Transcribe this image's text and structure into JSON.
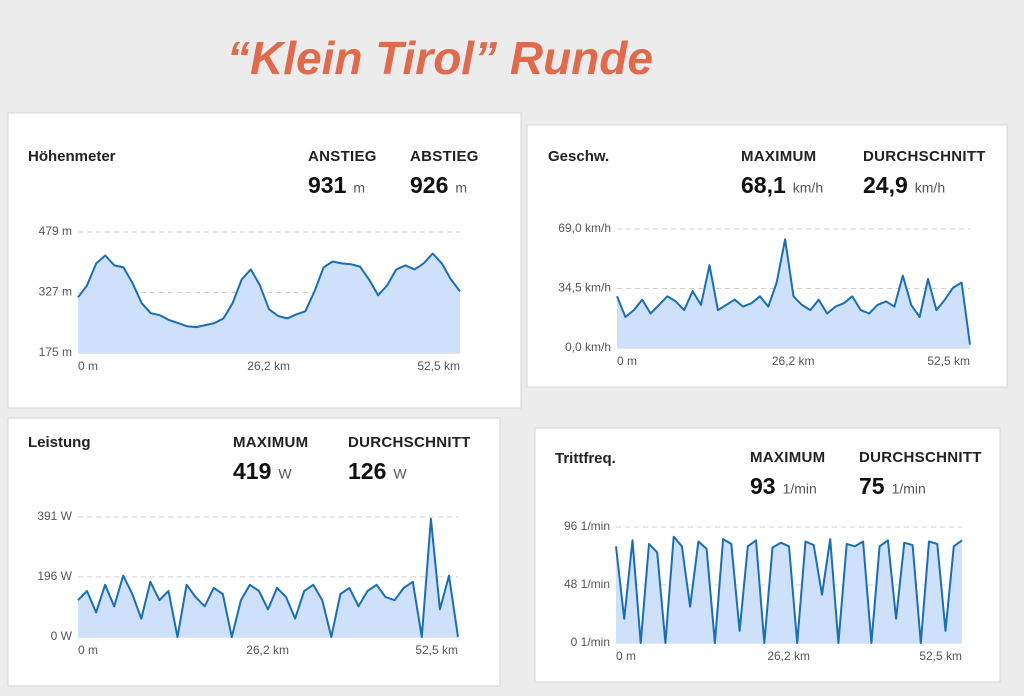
{
  "title": "“Klein Tirol” Runde",
  "chart_data": [
    {
      "type": "line",
      "title": "Höhenmeter",
      "stats": [
        {
          "name": "ANSTIEG",
          "value": 931,
          "unit": "m"
        },
        {
          "name": "ABSTIEG",
          "value": 926,
          "unit": "m"
        }
      ],
      "x": [
        0,
        1.25,
        2.5,
        3.75,
        5,
        6.25,
        7.5,
        8.75,
        10,
        11.25,
        12.5,
        13.75,
        15,
        16.25,
        17.5,
        18.75,
        20,
        21.25,
        22.5,
        23.75,
        25,
        26.25,
        27.5,
        28.75,
        30,
        31.25,
        32.5,
        33.75,
        35,
        36.25,
        37.5,
        38.75,
        40,
        41.25,
        42.5,
        43.75,
        45,
        46.25,
        47.5,
        48.75,
        50,
        51.25,
        52.5
      ],
      "series": [
        {
          "color": "#1a6fb0",
          "values": [
            315,
            345,
            400,
            420,
            395,
            390,
            350,
            300,
            275,
            270,
            258,
            250,
            242,
            240,
            245,
            250,
            262,
            300,
            360,
            385,
            345,
            285,
            268,
            262,
            272,
            280,
            330,
            390,
            405,
            400,
            398,
            392,
            360,
            320,
            345,
            385,
            395,
            385,
            400,
            425,
            400,
            360,
            330
          ]
        }
      ],
      "xlim": [
        0,
        52.5
      ],
      "xticks": [
        {
          "value": 0,
          "label": "0 m"
        },
        {
          "value": 26.2,
          "label": "26,2 km"
        },
        {
          "value": 52.5,
          "label": "52,5 km"
        }
      ],
      "ylim": [
        175,
        479
      ],
      "yticks": [
        {
          "value": 175,
          "label": "175 m"
        },
        {
          "value": 327,
          "label": "327 m"
        },
        {
          "value": 479,
          "label": "479 m"
        }
      ],
      "grid": true
    },
    {
      "type": "line",
      "title": "Geschw.",
      "stats": [
        {
          "name": "MAXIMUM",
          "value": 68.1,
          "value_label": "68,1",
          "unit": "km/h"
        },
        {
          "name": "DURCHSCHNITT",
          "value": 24.9,
          "value_label": "24,9",
          "unit": "km/h"
        }
      ],
      "x": [
        0,
        1.25,
        2.5,
        3.75,
        5,
        6.25,
        7.5,
        8.75,
        10,
        11.25,
        12.5,
        13.75,
        15,
        16.25,
        17.5,
        18.75,
        20,
        21.25,
        22.5,
        23.75,
        25,
        26.25,
        27.5,
        28.75,
        30,
        31.25,
        32.5,
        33.75,
        35,
        36.25,
        37.5,
        38.75,
        40,
        41.25,
        42.5,
        43.75,
        45,
        46.25,
        47.5,
        48.75,
        50,
        51.25,
        52.5
      ],
      "series": [
        {
          "color": "#1a6fb0",
          "values": [
            30,
            18,
            22,
            28,
            20,
            25,
            30,
            27,
            22,
            33,
            25,
            48,
            22,
            25,
            28,
            24,
            26,
            30,
            24,
            38,
            63,
            30,
            25,
            22,
            28,
            20,
            24,
            26,
            30,
            22,
            20,
            25,
            27,
            24,
            42,
            25,
            18,
            40,
            22,
            28,
            35,
            38,
            2
          ]
        }
      ],
      "xlim": [
        0,
        52.5
      ],
      "xticks": [
        {
          "value": 0,
          "label": "0 m"
        },
        {
          "value": 26.2,
          "label": "26,2 km"
        },
        {
          "value": 52.5,
          "label": "52,5 km"
        }
      ],
      "ylim": [
        0,
        69
      ],
      "yticks": [
        {
          "value": 0,
          "label": "0,0 km/h"
        },
        {
          "value": 34.5,
          "label": "34,5 km/h"
        },
        {
          "value": 69,
          "label": "69,0 km/h"
        }
      ],
      "grid": true
    },
    {
      "type": "line",
      "title": "Leistung",
      "stats": [
        {
          "name": "MAXIMUM",
          "value": 419,
          "unit": "W"
        },
        {
          "name": "DURCHSCHNITT",
          "value": 126,
          "unit": "W"
        }
      ],
      "x": [
        0,
        1.25,
        2.5,
        3.75,
        5,
        6.25,
        7.5,
        8.75,
        10,
        11.25,
        12.5,
        13.75,
        15,
        16.25,
        17.5,
        18.75,
        20,
        21.25,
        22.5,
        23.75,
        25,
        26.25,
        27.5,
        28.75,
        30,
        31.25,
        32.5,
        33.75,
        35,
        36.25,
        37.5,
        38.75,
        40,
        41.25,
        42.5,
        43.75,
        45,
        46.25,
        47.5,
        48.75,
        50,
        51.25,
        52.5
      ],
      "series": [
        {
          "color": "#1a6fb0",
          "values": [
            120,
            150,
            80,
            170,
            100,
            200,
            140,
            60,
            180,
            120,
            150,
            0,
            170,
            130,
            100,
            160,
            140,
            0,
            120,
            170,
            150,
            90,
            160,
            130,
            60,
            150,
            170,
            120,
            0,
            140,
            160,
            100,
            150,
            170,
            130,
            120,
            160,
            180,
            0,
            385,
            90,
            200,
            0
          ]
        }
      ],
      "xlim": [
        0,
        52.5
      ],
      "xticks": [
        {
          "value": 0,
          "label": "0 m"
        },
        {
          "value": 26.2,
          "label": "26,2 km"
        },
        {
          "value": 52.5,
          "label": "52,5 km"
        }
      ],
      "ylim": [
        0,
        391
      ],
      "yticks": [
        {
          "value": 0,
          "label": "0 W"
        },
        {
          "value": 196,
          "label": "196 W"
        },
        {
          "value": 391,
          "label": "391 W"
        }
      ],
      "grid": true
    },
    {
      "type": "line",
      "title": "Trittfreq.",
      "stats": [
        {
          "name": "MAXIMUM",
          "value": 93,
          "unit": "1/min"
        },
        {
          "name": "DURCHSCHNITT",
          "value": 75,
          "unit": "1/min"
        }
      ],
      "x": [
        0,
        1.25,
        2.5,
        3.75,
        5,
        6.25,
        7.5,
        8.75,
        10,
        11.25,
        12.5,
        13.75,
        15,
        16.25,
        17.5,
        18.75,
        20,
        21.25,
        22.5,
        23.75,
        25,
        26.25,
        27.5,
        28.75,
        30,
        31.25,
        32.5,
        33.75,
        35,
        36.25,
        37.5,
        38.75,
        40,
        41.25,
        42.5,
        43.75,
        45,
        46.25,
        47.5,
        48.75,
        50,
        51.25,
        52.5
      ],
      "series": [
        {
          "color": "#1a6fb0",
          "values": [
            80,
            20,
            85,
            0,
            82,
            75,
            0,
            88,
            80,
            30,
            84,
            78,
            0,
            86,
            82,
            10,
            80,
            85,
            0,
            79,
            83,
            80,
            0,
            84,
            81,
            40,
            86,
            0,
            82,
            80,
            84,
            0,
            80,
            85,
            20,
            83,
            81,
            0,
            84,
            82,
            10,
            80,
            85
          ]
        }
      ],
      "xlim": [
        0,
        52.5
      ],
      "xticks": [
        {
          "value": 0,
          "label": "0 m"
        },
        {
          "value": 26.2,
          "label": "26,2 km"
        },
        {
          "value": 52.5,
          "label": "52,5 km"
        }
      ],
      "ylim": [
        0,
        96
      ],
      "yticks": [
        {
          "value": 0,
          "label": "0 1/min"
        },
        {
          "value": 48,
          "label": "48 1/min"
        },
        {
          "value": 96,
          "label": "96 1/min"
        }
      ],
      "grid": true
    }
  ]
}
